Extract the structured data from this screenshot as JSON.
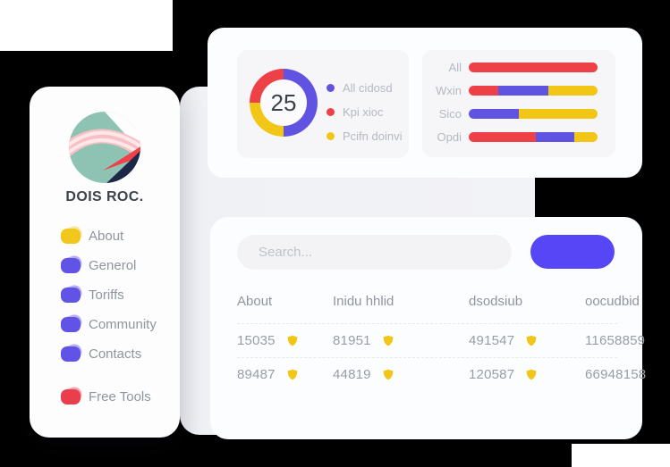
{
  "colors": {
    "accent": "#5646f6",
    "red": "#ee4147",
    "yellow": "#f2c617",
    "purple": "#6153e1"
  },
  "sidebar": {
    "title": "DOIS ROC.",
    "items": [
      {
        "label": "About",
        "icon": "blob-icon",
        "color": "#f1c71e",
        "spaced": false
      },
      {
        "label": "Generol",
        "icon": "blob-icon",
        "color": "#6153e6",
        "spaced": false
      },
      {
        "label": "Toriffs",
        "icon": "blob-icon",
        "color": "#6153e6",
        "spaced": false
      },
      {
        "label": "Community",
        "icon": "blob-icon",
        "color": "#6153e6",
        "spaced": false
      },
      {
        "label": "Contacts",
        "icon": "blob-icon",
        "color": "#6153e6",
        "spaced": false
      },
      {
        "label": "Free Tools",
        "icon": "blob-icon",
        "color": "#ea3d4d",
        "spaced": true
      }
    ]
  },
  "stats_card": {
    "donut": {
      "center_value": "25",
      "segments": [
        {
          "label": "All cidosd",
          "color": "#6153e1",
          "pct": 50
        },
        {
          "label": "Pcifn doinvi",
          "color": "#f2c617",
          "pct": 25
        },
        {
          "label": "Kpi xioc",
          "color": "#ee4147",
          "pct": 25
        }
      ],
      "legend": [
        {
          "label": "All cidosd",
          "color": "#6153e1"
        },
        {
          "label": "Kpi xioc",
          "color": "#ee4147"
        },
        {
          "label": "Pcifn doinvi",
          "color": "#f2c617"
        }
      ]
    },
    "bars": {
      "rows": [
        {
          "label": "All",
          "segments": [
            {
              "color": "#ee4147",
              "pct": 100
            }
          ]
        },
        {
          "label": "Wxin",
          "segments": [
            {
              "color": "#ee4147",
              "pct": 23
            },
            {
              "color": "#6153e1",
              "pct": 39
            },
            {
              "color": "#f2c617",
              "pct": 38
            }
          ]
        },
        {
          "label": "Sico",
          "segments": [
            {
              "color": "#6153e1",
              "pct": 39
            },
            {
              "color": "#f2c617",
              "pct": 61
            }
          ]
        },
        {
          "label": "Opdi",
          "segments": [
            {
              "color": "#ee4147",
              "pct": 52
            },
            {
              "color": "#6153e1",
              "pct": 30
            },
            {
              "color": "#f2c617",
              "pct": 18
            }
          ]
        }
      ]
    }
  },
  "table_card": {
    "search_placeholder": "Search...",
    "button_label": "",
    "columns": [
      "About",
      "Inidu hhlid",
      "dsodsiub",
      "oocudbid"
    ],
    "rows": [
      [
        {
          "value": "15035",
          "badge": true
        },
        {
          "value": "81951",
          "badge": true
        },
        {
          "value": "491547",
          "badge": true
        },
        {
          "value": "11658859",
          "badge": false
        }
      ],
      [
        {
          "value": "89487",
          "badge": true
        },
        {
          "value": "44819",
          "badge": true
        },
        {
          "value": "120587",
          "badge": true
        },
        {
          "value": "66948158",
          "badge": false
        }
      ]
    ]
  },
  "chart_data": [
    {
      "type": "pie",
      "labels": [
        "All cidosd",
        "Kpi xioc",
        "Pcifn doinvi"
      ],
      "values": [
        50,
        25,
        25
      ],
      "colors": [
        "#6153e1",
        "#ee4147",
        "#f2c617"
      ],
      "center_label": "25",
      "legend_position": "right"
    },
    {
      "type": "bar",
      "orientation": "horizontal",
      "stacked": true,
      "categories": [
        "All",
        "Wxin",
        "Sico",
        "Opdi"
      ],
      "series": [
        {
          "name": "Kpi xioc",
          "color": "#ee4147",
          "values": [
            100,
            23,
            0,
            52
          ]
        },
        {
          "name": "All cidosd",
          "color": "#6153e1",
          "values": [
            0,
            39,
            39,
            30
          ]
        },
        {
          "name": "Pcifn doinvi",
          "color": "#f2c617",
          "values": [
            0,
            38,
            61,
            18
          ]
        }
      ],
      "xlim": [
        0,
        100
      ]
    }
  ]
}
